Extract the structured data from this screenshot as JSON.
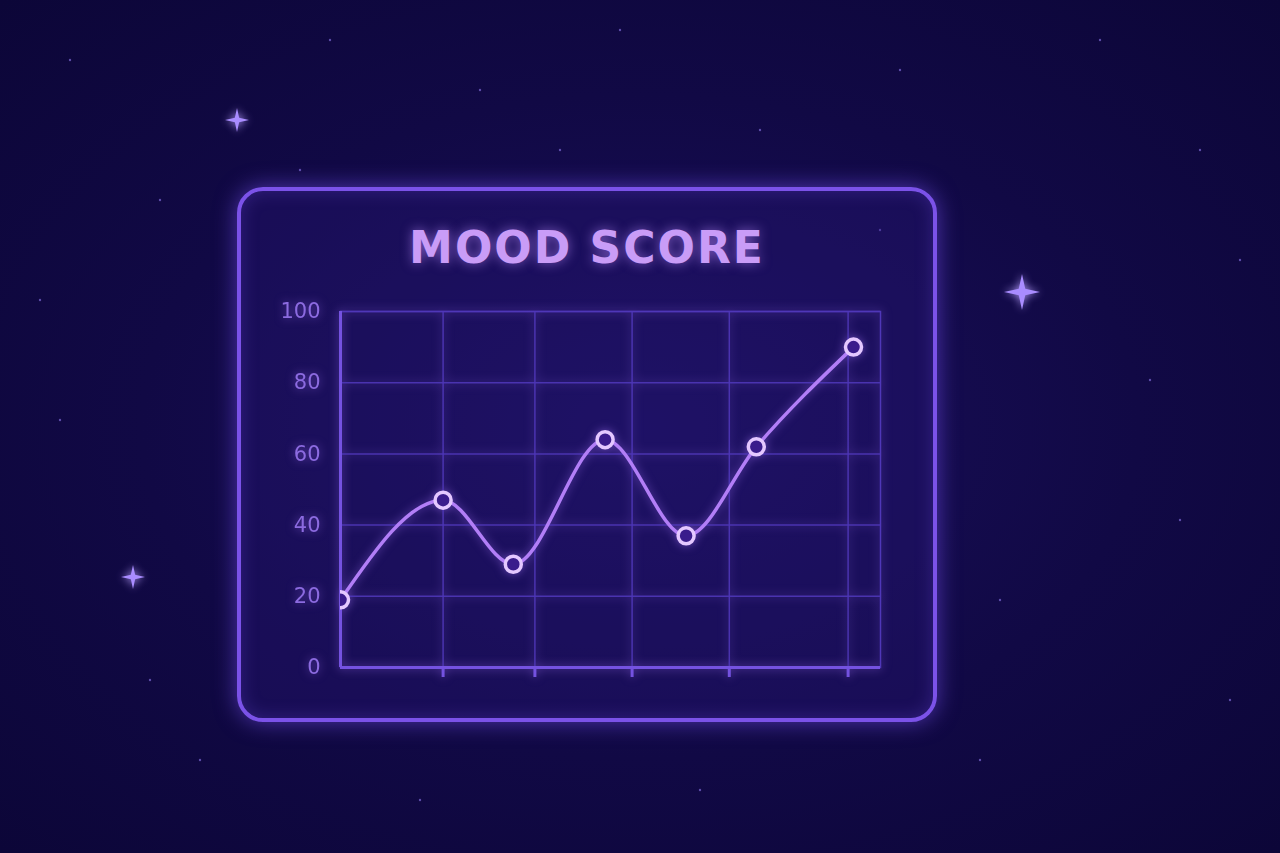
{
  "chart_data": {
    "type": "line",
    "title": "MOOD SCORE",
    "x": [
      0,
      19,
      32,
      49,
      64,
      77,
      95
    ],
    "values": [
      19,
      47,
      29,
      64,
      37,
      62,
      90
    ],
    "color": "#b27ef7",
    "marker": "circle",
    "xlim": [
      0,
      100
    ],
    "xticks": [
      19,
      36,
      54,
      72,
      94
    ],
    "ylim": [
      0,
      100
    ],
    "yticks": [
      0,
      20,
      40,
      60,
      80,
      100
    ],
    "grid": true,
    "tick_labels": "y"
  }
}
